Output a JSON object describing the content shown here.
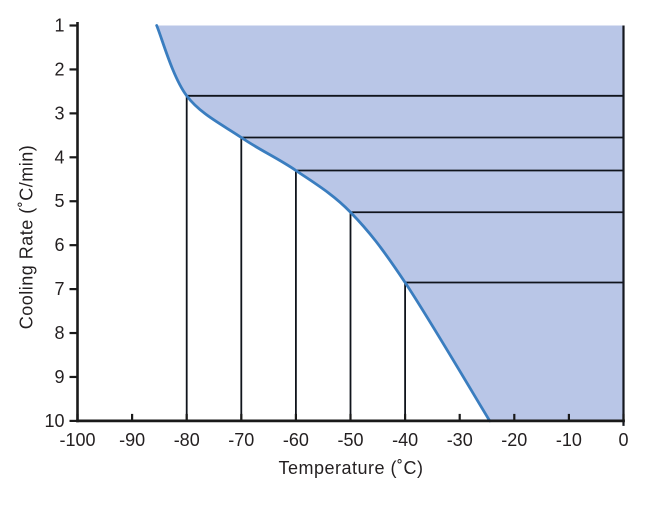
{
  "chart_data": {
    "type": "area",
    "title": "",
    "xlabel": "Temperature (˚C)",
    "ylabel": "Cooling Rate (˚C/min)",
    "xlim": [
      -100,
      0
    ],
    "ylim": [
      1,
      10
    ],
    "y_axis_inverted": true,
    "grid": false,
    "legend": "none",
    "x_ticks": [
      -100,
      -90,
      -80,
      -70,
      -60,
      -50,
      -40,
      -30,
      -20,
      -10,
      0
    ],
    "y_ticks": [
      1,
      2,
      3,
      4,
      5,
      6,
      7,
      8,
      9,
      10
    ],
    "curve": {
      "name": "cooling-rate-boundary-curve",
      "points": [
        [
          -85.5,
          1.0
        ],
        [
          -80,
          2.6
        ],
        [
          -70,
          3.55
        ],
        [
          -60,
          4.3
        ],
        [
          -50,
          5.25
        ],
        [
          -40,
          6.85
        ],
        [
          -24.5,
          10.0
        ]
      ]
    },
    "shaded_region": {
      "description": "region to the right of the curve, bounded above by cooling rate 1, on the right by temperature 0, below by cooling rate 10",
      "fill": "#b9c6e7"
    },
    "guide_lines": [
      {
        "temperature": -80,
        "cooling_rate": 2.6
      },
      {
        "temperature": -70,
        "cooling_rate": 3.55
      },
      {
        "temperature": -60,
        "cooling_rate": 4.3
      },
      {
        "temperature": -50,
        "cooling_rate": 5.25
      },
      {
        "temperature": -40,
        "cooling_rate": 6.85
      }
    ],
    "colors": {
      "region_fill": "#b9c6e7",
      "region_border": "#15181f",
      "curve": "#3a7dbf",
      "guide_line": "#10141c",
      "axis": "#1a1a1a",
      "text": "#231f20"
    }
  }
}
